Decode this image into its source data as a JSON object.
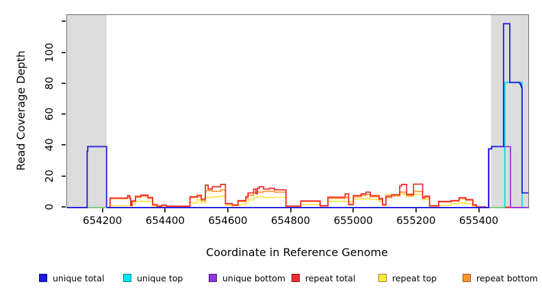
{
  "figure": {
    "xlabel": "Coordinate in Reference Genome",
    "ylabel": "Read Coverage Depth"
  },
  "legend": {
    "items": [
      {
        "label": "unique total",
        "color": "#1a1ae0"
      },
      {
        "label": "unique top",
        "color": "#00e5ee"
      },
      {
        "label": "unique bottom",
        "color": "#9333e6"
      },
      {
        "label": "repeat total",
        "color": "#f22c2c"
      },
      {
        "label": "repeat top",
        "color": "#ffeb3d"
      },
      {
        "label": "repeat bottom",
        "color": "#ff9730"
      }
    ]
  },
  "chart_data": {
    "type": "line",
    "step": true,
    "title": "",
    "xlabel": "Coordinate in Reference Genome",
    "ylabel": "Read Coverage Depth",
    "xlim": [
      654085,
      655556
    ],
    "ylim": [
      0,
      124.6
    ],
    "grid": false,
    "legend_position": "bottom",
    "xticks": [
      654200,
      654400,
      654600,
      654800,
      655000,
      655200,
      655400
    ],
    "yticks": [
      0,
      20,
      40,
      60,
      80,
      100,
      120
    ],
    "ytick_labels": [
      "0",
      "20",
      "40",
      "60",
      "80",
      "100",
      ""
    ],
    "shaded_regions": [
      {
        "x0": 654085,
        "x1": 654211,
        "color": "#dcdcdc"
      },
      {
        "x0": 655437,
        "x1": 655556,
        "color": "#dcdcdc"
      }
    ],
    "series": [
      {
        "name": "repeat top",
        "color": "#ffe34d",
        "points": [
          [
            654085,
            0
          ],
          [
            654222,
            1.2
          ],
          [
            654292,
            2
          ],
          [
            654303,
            4
          ],
          [
            654343,
            3.8
          ],
          [
            654358,
            0.8
          ],
          [
            654387,
            1
          ],
          [
            654402,
            0.5
          ],
          [
            654477,
            3
          ],
          [
            654500,
            5
          ],
          [
            654513,
            3
          ],
          [
            654526,
            6.5
          ],
          [
            654548,
            7
          ],
          [
            654575,
            7.5
          ],
          [
            654590,
            1.5
          ],
          [
            654612,
            1
          ],
          [
            654630,
            2
          ],
          [
            654655,
            3
          ],
          [
            654662,
            5
          ],
          [
            654680,
            6.5
          ],
          [
            654692,
            7
          ],
          [
            654712,
            6.5
          ],
          [
            654746,
            6.8
          ],
          [
            654783,
            0.5
          ],
          [
            654830,
            2
          ],
          [
            654892,
            1
          ],
          [
            654917,
            4
          ],
          [
            654998,
            5.6
          ],
          [
            655038,
            6
          ],
          [
            655052,
            5.2
          ],
          [
            655080,
            4
          ],
          [
            655091,
            1.2
          ],
          [
            655102,
            8.5
          ],
          [
            655146,
            8.8
          ],
          [
            655168,
            7
          ],
          [
            655190,
            8.5
          ],
          [
            655219,
            5
          ],
          [
            655226,
            5.5
          ],
          [
            655241,
            0.8
          ],
          [
            655270,
            1.5
          ],
          [
            655310,
            2.5
          ],
          [
            655335,
            3
          ],
          [
            655357,
            2.5
          ],
          [
            655379,
            1
          ],
          [
            655390,
            0.3
          ],
          [
            655420,
            0
          ],
          [
            655556,
            0
          ]
        ]
      },
      {
        "name": "repeat bottom",
        "color": "#ff9730",
        "points": [
          [
            654085,
            0
          ],
          [
            654222,
            5.8
          ],
          [
            654278,
            7
          ],
          [
            654285,
            5.8
          ],
          [
            654288,
            1.2
          ],
          [
            654292,
            3.8
          ],
          [
            654303,
            6.6
          ],
          [
            654320,
            7.4
          ],
          [
            654343,
            6
          ],
          [
            654358,
            1.7
          ],
          [
            654372,
            0.7
          ],
          [
            654387,
            1.4
          ],
          [
            654402,
            0.7
          ],
          [
            654477,
            6.5
          ],
          [
            654500,
            7
          ],
          [
            654513,
            4.5
          ],
          [
            654526,
            11
          ],
          [
            654548,
            10.5
          ],
          [
            654575,
            11.5
          ],
          [
            654590,
            2.3
          ],
          [
            654612,
            1.4
          ],
          [
            654630,
            4
          ],
          [
            654655,
            6
          ],
          [
            654662,
            8
          ],
          [
            654680,
            9.5
          ],
          [
            654692,
            10
          ],
          [
            654712,
            10.5
          ],
          [
            654746,
            10
          ],
          [
            654783,
            0.8
          ],
          [
            654830,
            4
          ],
          [
            654892,
            1
          ],
          [
            654917,
            6
          ],
          [
            654972,
            6.5
          ],
          [
            654983,
            1.8
          ],
          [
            654998,
            7
          ],
          [
            655023,
            8
          ],
          [
            655038,
            8.5
          ],
          [
            655052,
            7
          ],
          [
            655080,
            5.2
          ],
          [
            655091,
            1.6
          ],
          [
            655102,
            6.5
          ],
          [
            655120,
            7.5
          ],
          [
            655146,
            10
          ],
          [
            655168,
            7.8
          ],
          [
            655190,
            10.4
          ],
          [
            655219,
            6
          ],
          [
            655226,
            6.8
          ],
          [
            655241,
            1
          ],
          [
            655270,
            3.7
          ],
          [
            655310,
            4.2
          ],
          [
            655335,
            5.8
          ],
          [
            655357,
            4.7
          ],
          [
            655379,
            1.5
          ],
          [
            655390,
            0.4
          ],
          [
            655420,
            0
          ],
          [
            655481,
            0.5
          ],
          [
            655495,
            0
          ],
          [
            655556,
            0
          ]
        ]
      },
      {
        "name": "repeat total",
        "color": "#f22c2c",
        "points": [
          [
            654085,
            0
          ],
          [
            654222,
            6.2
          ],
          [
            654278,
            7.7
          ],
          [
            654285,
            6.2
          ],
          [
            654288,
            1.5
          ],
          [
            654292,
            4.3
          ],
          [
            654303,
            7.3
          ],
          [
            654320,
            8.1
          ],
          [
            654343,
            6.5
          ],
          [
            654358,
            2
          ],
          [
            654372,
            0.9
          ],
          [
            654387,
            1.6
          ],
          [
            654402,
            0.9
          ],
          [
            654477,
            7
          ],
          [
            654500,
            8
          ],
          [
            654513,
            5.5
          ],
          [
            654526,
            14.5
          ],
          [
            654535,
            12
          ],
          [
            654548,
            13.5
          ],
          [
            654575,
            15
          ],
          [
            654590,
            2.6
          ],
          [
            654612,
            1.7
          ],
          [
            654630,
            4.5
          ],
          [
            654655,
            7
          ],
          [
            654662,
            9.5
          ],
          [
            654680,
            12
          ],
          [
            654687,
            9
          ],
          [
            654692,
            12.5
          ],
          [
            654698,
            13.5
          ],
          [
            654712,
            12
          ],
          [
            654730,
            12.5
          ],
          [
            654746,
            11.5
          ],
          [
            654783,
            1
          ],
          [
            654830,
            4.3
          ],
          [
            654892,
            1.2
          ],
          [
            654917,
            6.8
          ],
          [
            654972,
            8.9
          ],
          [
            654983,
            2.1
          ],
          [
            654998,
            7.8
          ],
          [
            655023,
            8.9
          ],
          [
            655038,
            10
          ],
          [
            655052,
            7.8
          ],
          [
            655080,
            5.9
          ],
          [
            655091,
            2
          ],
          [
            655102,
            7.4
          ],
          [
            655120,
            8.3
          ],
          [
            655146,
            14
          ],
          [
            655152,
            15
          ],
          [
            655168,
            8.6
          ],
          [
            655190,
            15.2
          ],
          [
            655219,
            6.5
          ],
          [
            655226,
            7.4
          ],
          [
            655241,
            1.2
          ],
          [
            655270,
            4
          ],
          [
            655310,
            4.5
          ],
          [
            655335,
            6.4
          ],
          [
            655357,
            5.2
          ],
          [
            655379,
            1.8
          ],
          [
            655390,
            0.5
          ],
          [
            655420,
            0
          ],
          [
            655556,
            0
          ]
        ]
      },
      {
        "name": "unique top",
        "color": "#00dde6",
        "points": [
          [
            654085,
            0
          ],
          [
            655481,
            81
          ],
          [
            655536,
            0
          ],
          [
            655556,
            0
          ]
        ]
      },
      {
        "name": "unique bottom",
        "color": "#9333e6",
        "points": [
          [
            654085,
            0
          ],
          [
            655429,
            38
          ],
          [
            655439,
            39.5
          ],
          [
            655499,
            0
          ],
          [
            655556,
            0
          ]
        ]
      },
      {
        "name": "unique total",
        "color": "#1a1ae0",
        "points": [
          [
            654085,
            0
          ],
          [
            654149,
            36.5
          ],
          [
            654151,
            39.5
          ],
          [
            654211,
            0
          ],
          [
            655430,
            38
          ],
          [
            655439,
            39.5
          ],
          [
            655477,
            119
          ],
          [
            655497,
            81
          ],
          [
            655529,
            80
          ],
          [
            655532,
            79
          ],
          [
            655534,
            78
          ],
          [
            655536,
            9.5
          ],
          [
            655556,
            9.5
          ]
        ]
      }
    ],
    "extra_marks": [
      {
        "type": "baseline-segment",
        "color": "#7ecc7e",
        "x0": 654151,
        "x1": 654211,
        "value": 0
      },
      {
        "type": "baseline-segment",
        "color": "#7ecc7e",
        "x0": 655432,
        "x1": 655477,
        "value": 0
      }
    ]
  }
}
